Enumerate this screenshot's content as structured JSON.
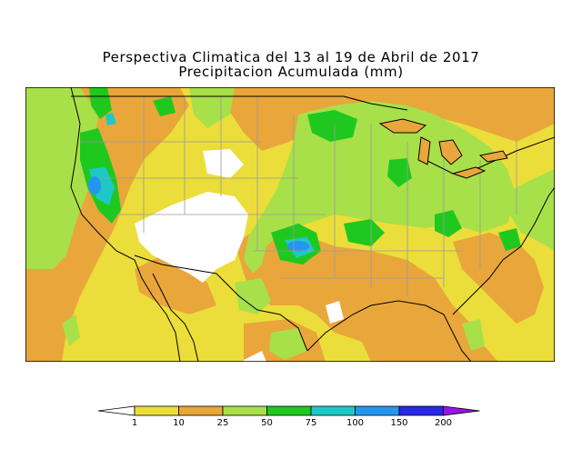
{
  "title": {
    "line1": "Perspectiva Climatica del 13 al 19 de Abril de 2017",
    "line2": "Precipitacion Acumulada (mm)"
  },
  "legend": {
    "unit": "mm",
    "thresholds": [
      "1",
      "10",
      "25",
      "50",
      "75",
      "100",
      "150",
      "200"
    ],
    "colors": [
      "#ffffff",
      "#ebde3a",
      "#e9a63a",
      "#a8e04a",
      "#1fc81f",
      "#1fc8c8",
      "#2496f0",
      "#2828e6",
      "#9b14e6"
    ]
  },
  "map": {
    "region": "Contiguous United States and northern Mexico",
    "color_scale": {
      "lt1": "#ffffff",
      "r1_10": "#ebde3a",
      "r10_25": "#e9a63a",
      "r25_50": "#a8e04a",
      "r50_75": "#1fc81f",
      "r75_100": "#1fc8c8",
      "r100_150": "#2496f0",
      "r150_200": "#2828e6"
    }
  }
}
